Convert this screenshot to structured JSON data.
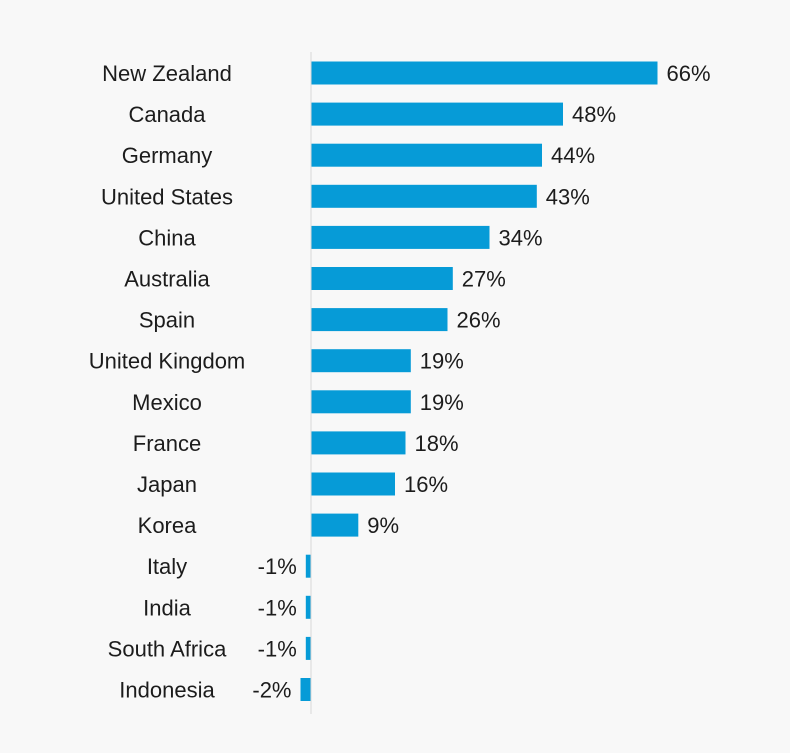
{
  "chart_data": {
    "type": "bar",
    "orientation": "horizontal",
    "categories": [
      "New Zealand",
      "Canada",
      "Germany",
      "United States",
      "China",
      "Australia",
      "Spain",
      "United Kingdom",
      "Mexico",
      "France",
      "Japan",
      "Korea",
      "Italy",
      "India",
      "South Africa",
      "Indonesia"
    ],
    "values": [
      66,
      48,
      44,
      43,
      34,
      27,
      26,
      19,
      19,
      18,
      16,
      9,
      -1,
      -1,
      -1,
      -2
    ],
    "value_labels": [
      "66%",
      "48%",
      "44%",
      "43%",
      "34%",
      "27%",
      "26%",
      "19%",
      "19%",
      "18%",
      "16%",
      "9%",
      "-1%",
      "-1%",
      "-1%",
      "-2%"
    ],
    "unit": "%",
    "bar_color": "#069bd7",
    "grid": false,
    "legend": "none",
    "title": "",
    "xlabel": "",
    "ylabel": ""
  }
}
